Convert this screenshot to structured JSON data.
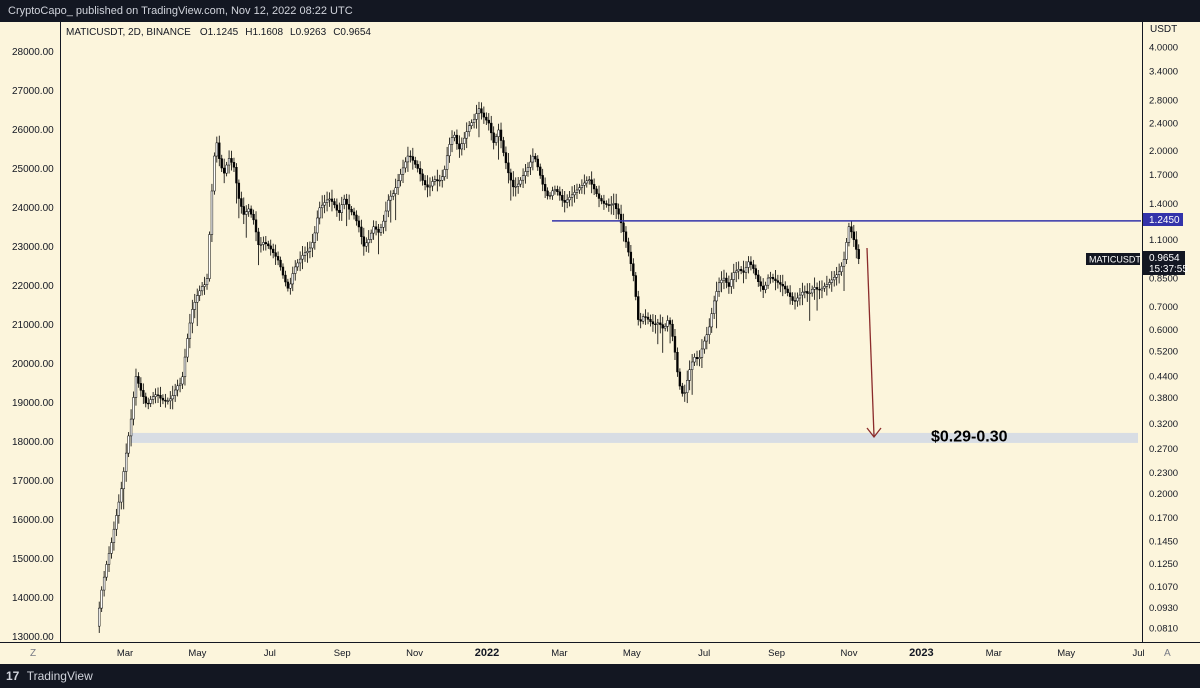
{
  "header": {
    "caption": "CryptoCapo_ published on TradingView.com, Nov 12, 2022 08:22 UTC"
  },
  "footer": {
    "brand": "TradingView",
    "logo_glyph": "17"
  },
  "chart_data": {
    "type": "candlestick",
    "symbol_info": "MATICUSDT, 2D, BINANCE",
    "ohlc_text": {
      "o": "O1.1245",
      "h": "H1.1608",
      "l": "L0.9263",
      "c": "C0.9654"
    },
    "right_axis_unit": "USDT",
    "left_ticks": [
      "28000.00",
      "27000.00",
      "26000.00",
      "25000.00",
      "24000.00",
      "23000.00",
      "22000.00",
      "21000.00",
      "20000.00",
      "19000.00",
      "18000.00",
      "17000.00",
      "16000.00",
      "15000.00",
      "14000.00",
      "13000.00"
    ],
    "right_ticks": [
      "4.0000",
      "3.4000",
      "2.8000",
      "2.4000",
      "2.0000",
      "1.7000",
      "1.4000",
      "1.1000",
      "0.8500",
      "0.7000",
      "0.6000",
      "0.5200",
      "0.4400",
      "0.3800",
      "0.3200",
      "0.2700",
      "0.2300",
      "0.2000",
      "0.1700",
      "0.1450",
      "0.1250",
      "0.1070",
      "0.0930",
      "0.0810"
    ],
    "right_scale": "log",
    "x_ticks": [
      "Mar",
      "May",
      "Jul",
      "Sep",
      "Nov",
      "2022",
      "Mar",
      "May",
      "Jul",
      "Sep",
      "Nov",
      "2023",
      "Mar",
      "May",
      "Jul"
    ],
    "x_ticks_bold": [
      "2022",
      "2023"
    ],
    "axis_buttons": {
      "left": "Z",
      "right": "A"
    },
    "resistance": {
      "price": 1.245,
      "label": "1.2450",
      "color": "#3333aa"
    },
    "last_price": {
      "symbol": "MATICUSDT",
      "price": "0.9654",
      "countdown": "15:37:55"
    },
    "support_zone": {
      "low": 0.29,
      "high": 0.3,
      "label": "$0.29-0.30",
      "color": "#d8dde4"
    },
    "arrow_color": "#8b2b2b",
    "candle_colors": {
      "up": "#ffffff",
      "down": "#000000"
    }
  }
}
